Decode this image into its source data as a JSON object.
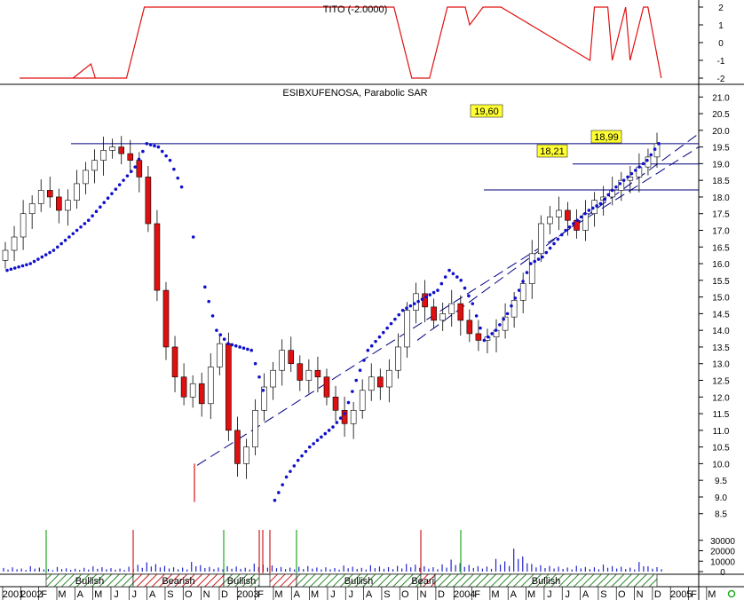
{
  "indicator_title": "TITO (-2.0000)",
  "main_title": "ESIBXUFENOSA, Parabolic SAR",
  "price_labels": [
    "19,60",
    "18,99",
    "18,21"
  ],
  "colors": {
    "up_candle": "#ffffff",
    "down_candle": "#e01010",
    "sar": "#1010cc",
    "indicator": "#e01010",
    "trendline": "#000080",
    "volume": "#2222cc",
    "bullish_fill": "#2a8a2a",
    "bearish_fill": "#cc2020",
    "label_bg": "#ffff33"
  },
  "chart_data": [
    {
      "type": "line",
      "name": "TITO",
      "yticks": [
        "2",
        "1",
        "0",
        "-1",
        "-2"
      ],
      "ylim": [
        -2,
        2
      ],
      "x": [
        "2002-01",
        "2002-04",
        "2002-05",
        "2002-05",
        "2002-07",
        "2002-08",
        "2002-09",
        "2002-11",
        "2003-01",
        "2003-02",
        "2003-04",
        "2003-09",
        "2003-10",
        "2003-11",
        "2003-12",
        "2004-01",
        "2004-02",
        "2004-02",
        "2004-03",
        "2004-04",
        "2004-09",
        "2004-09",
        "2004-10",
        "2004-10",
        "2004-11",
        "2004-11",
        "2004-12",
        "2004-12",
        "2005-01"
      ],
      "values": [
        -2,
        -2,
        -1.2,
        -2,
        -2,
        2,
        2,
        2,
        2,
        2,
        2,
        2,
        2,
        -2,
        -2,
        2,
        2,
        1,
        2,
        2,
        -1,
        2,
        2,
        -1,
        2,
        -1,
        2,
        2,
        -2
      ]
    },
    {
      "type": "candlestick",
      "title": "ESIBXUFENOSA, Parabolic SAR",
      "yticks": [
        "21.0",
        "20.5",
        "20.0",
        "19.5",
        "19.0",
        "18.5",
        "18.0",
        "17.5",
        "17.0",
        "16.5",
        "16.0",
        "15.5",
        "15.0",
        "14.5",
        "14.0",
        "13.5",
        "13.0",
        "12.5",
        "12.0",
        "11.5",
        "11.0",
        "10.5",
        "10.0",
        "9.5",
        "9.0",
        "8.5"
      ],
      "ylim": [
        8.2,
        21.3
      ],
      "horizontal_lines": [
        19.6,
        18.99,
        18.21
      ],
      "close": [
        16.4,
        16.8,
        17.5,
        17.8,
        18.2,
        18.0,
        17.6,
        17.9,
        18.4,
        18.8,
        19.1,
        19.4,
        19.5,
        19.3,
        19.1,
        18.6,
        17.2,
        15.2,
        13.5,
        12.6,
        12.0,
        12.4,
        11.8,
        12.9,
        13.6,
        11.0,
        10.0,
        10.5,
        11.6,
        12.3,
        12.8,
        13.4,
        13.0,
        12.5,
        12.8,
        12.6,
        12.0,
        11.6,
        11.2,
        11.6,
        12.2,
        12.6,
        12.3,
        12.8,
        13.5,
        14.6,
        15.1,
        14.7,
        14.3,
        14.5,
        14.8,
        14.3,
        13.9,
        13.7,
        13.8,
        14.0,
        14.4,
        14.9,
        15.4,
        16.3,
        17.2,
        17.4,
        17.6,
        17.3,
        17.0,
        17.5,
        17.9,
        18.0,
        18.2,
        18.5,
        18.6,
        18.9,
        19.2,
        19.6
      ],
      "sar": [
        15.8,
        15.9,
        16.0,
        16.2,
        16.4,
        16.7,
        17.0,
        17.3,
        17.7,
        18.1,
        18.5,
        18.9,
        19.6,
        19.5,
        19.1,
        18.3,
        16.8,
        15.3,
        14.0,
        13.6,
        13.5,
        13.4,
        12.2,
        8.9,
        9.6,
        10.1,
        10.5,
        10.8,
        11.1,
        11.5,
        12.5,
        13.4,
        13.8,
        14.2,
        14.6,
        14.8,
        15.0,
        15.2,
        15.8,
        15.5,
        14.8,
        13.7,
        14.0,
        14.5,
        15.2,
        16.0,
        16.2,
        16.6,
        17.0,
        17.3,
        17.6,
        17.8,
        18.2,
        18.5,
        18.8,
        19.1,
        19.6
      ]
    },
    {
      "type": "bar",
      "name": "Volume",
      "yticks": [
        "30000",
        "20000",
        "10000",
        "0"
      ],
      "ylim": [
        0,
        40000
      ],
      "values": [
        3500,
        4100,
        2900,
        5200,
        3800,
        2600,
        4400,
        3100,
        2800,
        3600,
        5000,
        4200,
        3300,
        2900,
        4700,
        6500,
        8900,
        7200,
        5400,
        4100,
        3800,
        9300,
        6200,
        4500,
        3900,
        5100,
        4800,
        3700,
        7600,
        6800,
        5900,
        4400,
        3800,
        4600,
        5300,
        3900,
        4100,
        3400,
        5800,
        4700,
        3600,
        6100,
        4900,
        4300,
        5500,
        7400,
        6600,
        5100,
        4200,
        6900,
        11500,
        8200,
        6400,
        5200,
        4800,
        12200,
        9800,
        22000,
        14500,
        7300,
        6200,
        5400,
        4700,
        3900,
        5600,
        4400,
        4100,
        6700,
        5300,
        4600,
        3800,
        9200,
        5100,
        4300
      ]
    }
  ],
  "signal_bar": [
    {
      "label": "Bullish",
      "type": "bullish"
    },
    {
      "label": "Bearish",
      "type": "bearish"
    },
    {
      "label": "Bullish",
      "type": "bullish"
    },
    {
      "label": "",
      "type": "bearish"
    },
    {
      "label": "Bullish",
      "type": "bullish"
    },
    {
      "label": "Bearish",
      "type": "bearish"
    },
    {
      "label": "Bullish",
      "type": "bullish"
    }
  ],
  "time_axis": {
    "labels": [
      "2001",
      "2002",
      "F",
      "M",
      "A",
      "M",
      "J",
      "J",
      "A",
      "S",
      "O",
      "N",
      "D",
      "2003",
      "F",
      "M",
      "A",
      "M",
      "J",
      "J",
      "A",
      "S",
      "O",
      "N",
      "D",
      "2004",
      "F",
      "M",
      "A",
      "M",
      "J",
      "J",
      "A",
      "S",
      "O",
      "N",
      "D",
      "2005",
      "F",
      "M"
    ]
  },
  "status_icon": "status-circle-icon"
}
